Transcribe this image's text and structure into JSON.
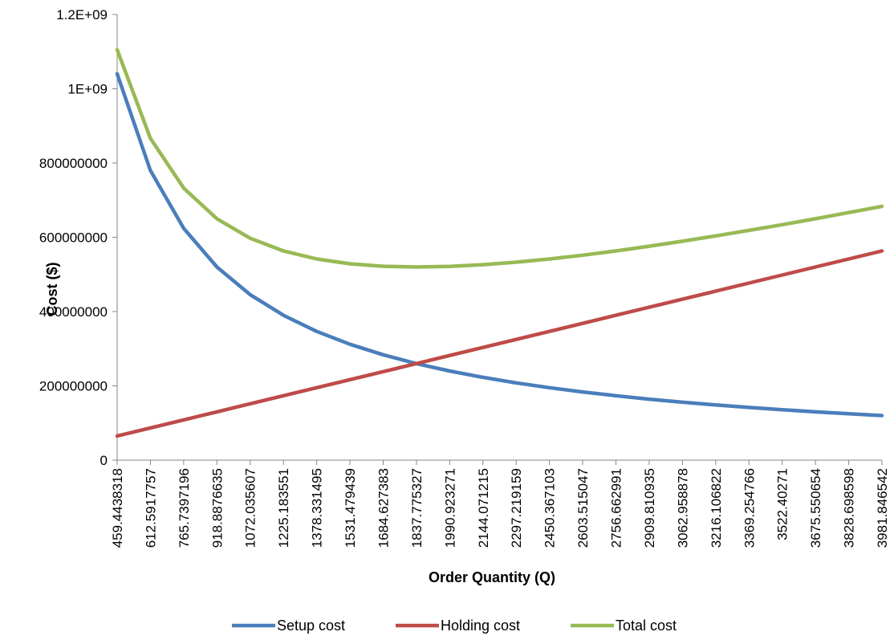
{
  "chart_data": {
    "type": "line",
    "title": "",
    "xlabel": "Order Quantity (Q)",
    "ylabel": "Cost ($)",
    "ylim": [
      0,
      1200000000
    ],
    "y_ticks": [
      "0",
      "200000000",
      "400000000",
      "600000000",
      "800000000",
      "1E+09",
      "1.2E+09"
    ],
    "y_tick_values": [
      0,
      200000000,
      400000000,
      600000000,
      800000000,
      1000000000,
      1200000000
    ],
    "categories": [
      "459.4438318",
      "612.5917757",
      "765.7397196",
      "918.8876635",
      "1072.035607",
      "1225.183551",
      "1378.331495",
      "1531.479439",
      "1684.627383",
      "1837.775327",
      "1990.923271",
      "2144.071215",
      "2297.219159",
      "2450.367103",
      "2603.515047",
      "2756.662991",
      "2909.810935",
      "3062.958878",
      "3216.106822",
      "3369.254766",
      "3522.40271",
      "3675.550654",
      "3828.698598",
      "3981.846542"
    ],
    "grid": false,
    "legend_position": "bottom",
    "series": [
      {
        "name": "Setup cost",
        "color": "#4A7EBB",
        "values": [
          1040000000,
          780000000,
          624000000,
          520000000,
          445700000,
          390000000,
          346700000,
          312000000,
          283600000,
          260000000,
          240000000,
          222900000,
          208000000,
          195000000,
          183500000,
          173300000,
          164200000,
          156000000,
          148600000,
          141800000,
          135700000,
          130000000,
          124800000,
          120000000
        ]
      },
      {
        "name": "Holding cost",
        "color": "#BE4B48",
        "values": [
          65000000,
          86700000,
          108300000,
          130000000,
          151700000,
          173300000,
          195000000,
          216700000,
          238300000,
          260000000,
          281700000,
          303300000,
          325000000,
          346700000,
          368300000,
          390000000,
          411700000,
          433300000,
          455000000,
          476700000,
          498300000,
          520000000,
          541700000,
          563300000
        ]
      },
      {
        "name": "Total cost",
        "color": "#98B954",
        "values": [
          1105000000,
          866700000,
          732300000,
          650000000,
          597400000,
          563300000,
          541700000,
          528700000,
          521900000,
          520000000,
          521700000,
          526200000,
          533000000,
          541700000,
          551800000,
          563300000,
          575900000,
          589300000,
          603600000,
          618500000,
          634000000,
          650000000,
          666500000,
          683300000
        ]
      }
    ]
  }
}
